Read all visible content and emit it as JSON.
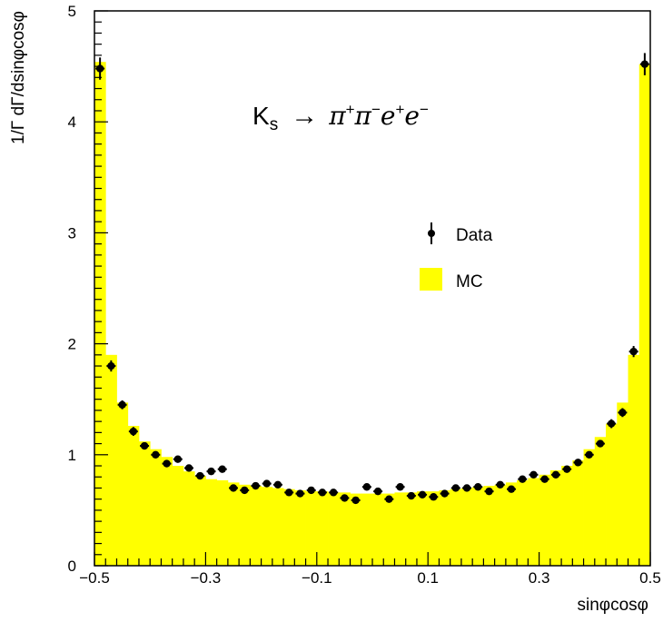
{
  "chart_data": {
    "type": "bar",
    "title": "",
    "annotation": {
      "K": "K",
      "K_sub": "s",
      "arrow": "→",
      "pi1": "π",
      "pi1_sup": "+",
      "pi2": "π",
      "pi2_sup": "−",
      "e1": "e",
      "e1_sup": "+",
      "e2": "e",
      "e2_sup": "−"
    },
    "xlabel": "sinφcosφ",
    "ylabel": "1/Γ dΓ/dsinφcosφ",
    "xlim": [
      -0.5,
      0.5
    ],
    "ylim": [
      0,
      5
    ],
    "x_tick_labels": [
      "−0.5",
      "−0.3",
      "−0.1",
      "0.1",
      "0.3",
      "0.5"
    ],
    "x_tick_values": [
      -0.5,
      -0.3,
      -0.1,
      0.1,
      0.3,
      0.5
    ],
    "y_tick_labels": [
      "0",
      "1",
      "2",
      "3",
      "4",
      "5"
    ],
    "y_tick_values": [
      0,
      1,
      2,
      3,
      4,
      5
    ],
    "legend": {
      "position": "center-right",
      "entries": [
        {
          "name": "Data",
          "marker": "point-with-error"
        },
        {
          "name": "MC",
          "marker": "filled-box"
        }
      ]
    },
    "bins": 50,
    "bin_width": 0.02,
    "series": [
      {
        "name": "MC",
        "color": "#ffff00",
        "values": [
          4.54,
          1.9,
          1.47,
          1.26,
          1.12,
          1.05,
          0.98,
          0.9,
          0.85,
          0.81,
          0.78,
          0.77,
          0.75,
          0.73,
          0.72,
          0.71,
          0.7,
          0.69,
          0.68,
          0.67,
          0.67,
          0.66,
          0.66,
          0.65,
          0.65,
          0.65,
          0.65,
          0.66,
          0.66,
          0.67,
          0.67,
          0.68,
          0.69,
          0.7,
          0.71,
          0.72,
          0.73,
          0.75,
          0.77,
          0.79,
          0.82,
          0.86,
          0.9,
          0.95,
          1.05,
          1.16,
          1.28,
          1.47,
          1.9,
          4.52
        ]
      },
      {
        "name": "Data",
        "color": "#000000",
        "values": [
          4.48,
          1.8,
          1.45,
          1.21,
          1.08,
          1.0,
          0.92,
          0.96,
          0.88,
          0.81,
          0.85,
          0.87,
          0.7,
          0.68,
          0.72,
          0.74,
          0.73,
          0.66,
          0.65,
          0.68,
          0.66,
          0.66,
          0.61,
          0.59,
          0.71,
          0.67,
          0.6,
          0.71,
          0.63,
          0.64,
          0.62,
          0.65,
          0.7,
          0.7,
          0.71,
          0.67,
          0.73,
          0.69,
          0.78,
          0.82,
          0.78,
          0.82,
          0.87,
          0.93,
          1.0,
          1.1,
          1.28,
          1.38,
          1.93,
          4.52
        ],
        "errors": [
          0.1,
          0.05,
          0.04,
          0.04,
          0.03,
          0.03,
          0.03,
          0.03,
          0.03,
          0.03,
          0.03,
          0.03,
          0.03,
          0.02,
          0.03,
          0.03,
          0.03,
          0.02,
          0.02,
          0.02,
          0.02,
          0.02,
          0.02,
          0.02,
          0.02,
          0.02,
          0.02,
          0.02,
          0.02,
          0.02,
          0.02,
          0.02,
          0.02,
          0.02,
          0.02,
          0.02,
          0.03,
          0.02,
          0.03,
          0.03,
          0.03,
          0.03,
          0.03,
          0.03,
          0.03,
          0.03,
          0.04,
          0.04,
          0.05,
          0.1
        ]
      }
    ]
  }
}
